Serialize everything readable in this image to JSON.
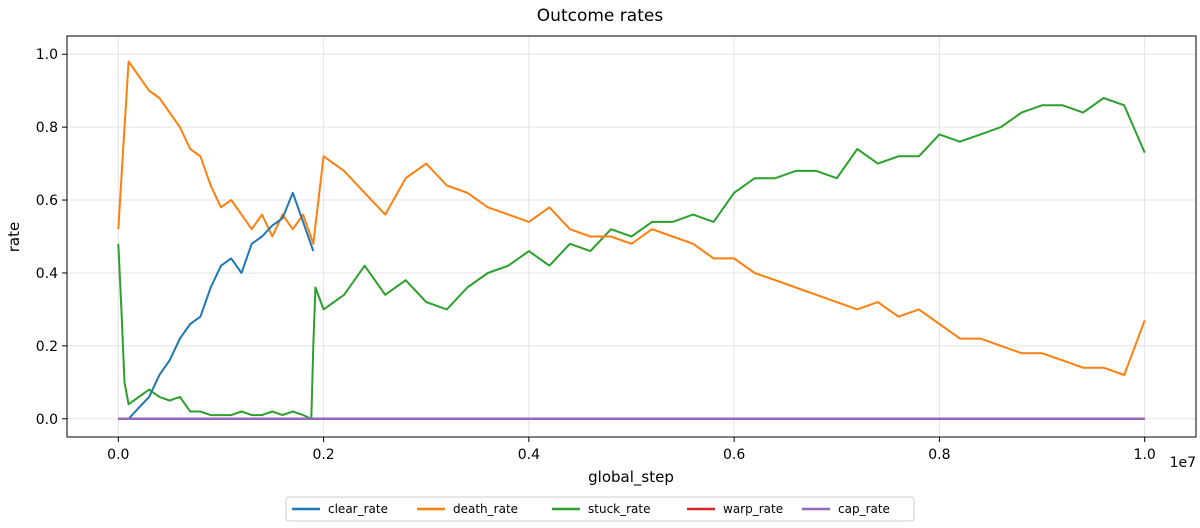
{
  "chart_data": {
    "type": "line",
    "title": "Outcome rates",
    "xlabel": "global_step",
    "ylabel": "rate",
    "x_scale_label": "1e7",
    "xlim": [
      -0.05,
      1.05
    ],
    "ylim": [
      -0.05,
      1.05
    ],
    "x_ticks": [
      0.0,
      0.2,
      0.4,
      0.6,
      0.8,
      1.0
    ],
    "x_tick_labels": [
      "0.0",
      "0.2",
      "0.4",
      "0.6",
      "0.8",
      "1.0"
    ],
    "y_ticks": [
      0.0,
      0.2,
      0.4,
      0.6,
      0.8,
      1.0
    ],
    "y_tick_labels": [
      "0.0",
      "0.2",
      "0.4",
      "0.6",
      "0.8",
      "1.0"
    ],
    "grid": true,
    "legend_placement": "bottom-center",
    "series": [
      {
        "name": "clear_rate",
        "color": "#1f77b4",
        "x": [
          0.0,
          0.01,
          0.02,
          0.03,
          0.04,
          0.05,
          0.06,
          0.07,
          0.08,
          0.09,
          0.1,
          0.11,
          0.12,
          0.13,
          0.14,
          0.15,
          0.16,
          0.17,
          0.18,
          0.19
        ],
        "y": [
          0.0,
          0.0,
          0.03,
          0.06,
          0.12,
          0.16,
          0.22,
          0.26,
          0.28,
          0.36,
          0.42,
          0.44,
          0.4,
          0.48,
          0.5,
          0.53,
          0.55,
          0.62,
          0.54,
          0.46
        ]
      },
      {
        "name": "death_rate",
        "color": "#ff7f0e",
        "x": [
          0.0,
          0.005,
          0.01,
          0.02,
          0.03,
          0.04,
          0.05,
          0.06,
          0.07,
          0.08,
          0.09,
          0.1,
          0.11,
          0.12,
          0.13,
          0.14,
          0.15,
          0.16,
          0.17,
          0.18,
          0.19,
          0.2,
          0.22,
          0.24,
          0.26,
          0.28,
          0.3,
          0.32,
          0.34,
          0.36,
          0.38,
          0.4,
          0.42,
          0.44,
          0.46,
          0.48,
          0.5,
          0.52,
          0.54,
          0.56,
          0.58,
          0.6,
          0.62,
          0.64,
          0.66,
          0.68,
          0.7,
          0.72,
          0.74,
          0.76,
          0.78,
          0.8,
          0.82,
          0.84,
          0.86,
          0.88,
          0.9,
          0.92,
          0.94,
          0.96,
          0.98,
          1.0
        ],
        "y": [
          0.52,
          0.75,
          0.98,
          0.94,
          0.9,
          0.88,
          0.84,
          0.8,
          0.74,
          0.72,
          0.64,
          0.58,
          0.6,
          0.56,
          0.52,
          0.56,
          0.5,
          0.56,
          0.52,
          0.56,
          0.48,
          0.72,
          0.68,
          0.62,
          0.56,
          0.66,
          0.7,
          0.64,
          0.62,
          0.58,
          0.56,
          0.54,
          0.58,
          0.52,
          0.5,
          0.5,
          0.48,
          0.52,
          0.5,
          0.48,
          0.44,
          0.44,
          0.4,
          0.38,
          0.36,
          0.34,
          0.32,
          0.3,
          0.32,
          0.28,
          0.3,
          0.26,
          0.22,
          0.22,
          0.2,
          0.18,
          0.18,
          0.16,
          0.14,
          0.14,
          0.12,
          0.27
        ]
      },
      {
        "name": "stuck_rate",
        "color": "#2ca02c",
        "x": [
          0.0,
          0.003,
          0.006,
          0.01,
          0.02,
          0.03,
          0.04,
          0.05,
          0.06,
          0.07,
          0.08,
          0.09,
          0.1,
          0.11,
          0.12,
          0.13,
          0.14,
          0.15,
          0.16,
          0.17,
          0.18,
          0.188,
          0.19,
          0.192,
          0.2,
          0.22,
          0.24,
          0.26,
          0.28,
          0.3,
          0.32,
          0.34,
          0.36,
          0.38,
          0.4,
          0.42,
          0.44,
          0.46,
          0.48,
          0.5,
          0.52,
          0.54,
          0.56,
          0.58,
          0.6,
          0.62,
          0.64,
          0.66,
          0.68,
          0.7,
          0.72,
          0.74,
          0.76,
          0.78,
          0.8,
          0.82,
          0.84,
          0.86,
          0.88,
          0.9,
          0.92,
          0.94,
          0.96,
          0.98,
          1.0
        ],
        "y": [
          0.48,
          0.3,
          0.1,
          0.04,
          0.06,
          0.08,
          0.06,
          0.05,
          0.06,
          0.02,
          0.02,
          0.01,
          0.01,
          0.01,
          0.02,
          0.01,
          0.01,
          0.02,
          0.01,
          0.02,
          0.01,
          0.0,
          0.2,
          0.36,
          0.3,
          0.34,
          0.42,
          0.34,
          0.38,
          0.32,
          0.3,
          0.36,
          0.4,
          0.42,
          0.46,
          0.42,
          0.48,
          0.46,
          0.52,
          0.5,
          0.54,
          0.54,
          0.56,
          0.54,
          0.62,
          0.66,
          0.66,
          0.68,
          0.68,
          0.66,
          0.74,
          0.7,
          0.72,
          0.72,
          0.78,
          0.76,
          0.78,
          0.8,
          0.84,
          0.86,
          0.86,
          0.84,
          0.88,
          0.86,
          0.73
        ]
      },
      {
        "name": "warp_rate",
        "color": "#d62728",
        "x": [
          0.0,
          1.0
        ],
        "y": [
          0.0,
          0.0
        ]
      },
      {
        "name": "cap_rate",
        "color": "#9467bd",
        "x": [
          0.0,
          1.0
        ],
        "y": [
          0.0,
          0.0
        ]
      }
    ]
  }
}
